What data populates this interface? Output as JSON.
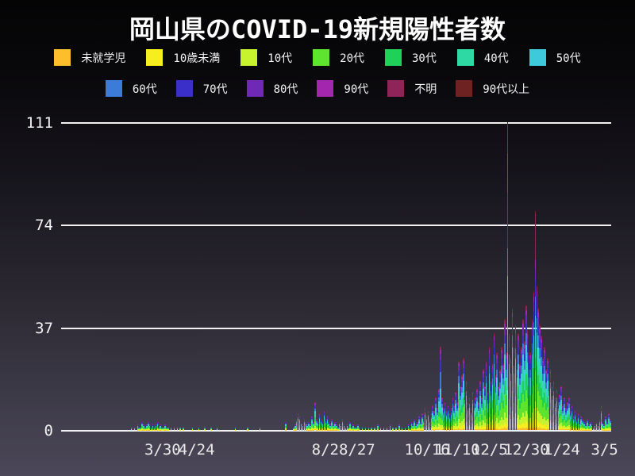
{
  "title": "岡山県のCOVID-19新規陽性者数",
  "colors": {
    "background_top": "#040405",
    "background_bottom": "#4b4758",
    "grid": "#f2f2f2",
    "text": "#ffffff"
  },
  "chart_data": {
    "type": "bar",
    "stacked": true,
    "title": "岡山県のCOVID-19新規陽性者数",
    "xlabel": "",
    "ylabel": "",
    "grid": "horizontal",
    "legend_position": "top",
    "ymax": 111,
    "yticks": [
      0,
      37,
      74,
      111
    ],
    "x_tick_labels": [
      {
        "label": "3/30",
        "pos": 0.181
      },
      {
        "label": "4/24",
        "pos": 0.243
      },
      {
        "label": "8/2",
        "pos": 0.478
      },
      {
        "label": "8/27",
        "pos": 0.536
      },
      {
        "label": "10/16",
        "pos": 0.664
      },
      {
        "label": "11/10",
        "pos": 0.719
      },
      {
        "label": "12/5",
        "pos": 0.778
      },
      {
        "label": "12/30",
        "pos": 0.845
      },
      {
        "label": "1/24",
        "pos": 0.91
      },
      {
        "label": "3/5",
        "pos": 0.988
      }
    ],
    "groups": [
      {
        "label": "未就学児",
        "color": "#fcbe2b"
      },
      {
        "label": "10歳未満",
        "color": "#f6ee1f"
      },
      {
        "label": "10代",
        "color": "#c6f32e"
      },
      {
        "label": "20代",
        "color": "#5fe42e"
      },
      {
        "label": "30代",
        "color": "#1fd158"
      },
      {
        "label": "40代",
        "color": "#2fd9a4"
      },
      {
        "label": "50代",
        "color": "#3ec9dd"
      },
      {
        "label": "60代",
        "color": "#3c7cd8"
      },
      {
        "label": "70代",
        "color": "#3a2fc9"
      },
      {
        "label": "80代",
        "color": "#7028b6"
      },
      {
        "label": "90代",
        "color": "#a227ae"
      },
      {
        "label": "不明",
        "color": "#8f2458"
      },
      {
        "label": "90代以上",
        "color": "#6e2222"
      }
    ],
    "age_weights": [
      2,
      5,
      9,
      17,
      13,
      12,
      12,
      10,
      8,
      7,
      4,
      3,
      1
    ],
    "weight_overrides": {
      "246": [
        0,
        2,
        4,
        8,
        6,
        8,
        22,
        20,
        14,
        8,
        4,
        4,
        0
      ],
      "290": [
        1,
        4,
        8,
        12,
        6,
        6,
        13,
        9,
        8,
        10,
        13,
        9,
        1
      ],
      "308": [
        1,
        4,
        8,
        14,
        6,
        5,
        14,
        9,
        7,
        6,
        4,
        21,
        1
      ]
    },
    "daily_totals": [
      0,
      0,
      0,
      0,
      0,
      0,
      0,
      0,
      0,
      0,
      0,
      0,
      0,
      0,
      0,
      0,
      0,
      0,
      0,
      0,
      0,
      0,
      0,
      0,
      0,
      0,
      0,
      0,
      0,
      0,
      0,
      0,
      0,
      0,
      0,
      0,
      0,
      0,
      0,
      0,
      0,
      0,
      0,
      0,
      1,
      0,
      1,
      0,
      2,
      1,
      1,
      3,
      2,
      1,
      2,
      3,
      2,
      1,
      2,
      1,
      2,
      3,
      1,
      2,
      1,
      1,
      2,
      1,
      1,
      0,
      1,
      0,
      1,
      0,
      1,
      0,
      1,
      0,
      1,
      0,
      0,
      0,
      0,
      0,
      1,
      0,
      0,
      0,
      1,
      0,
      0,
      0,
      1,
      0,
      0,
      0,
      1,
      0,
      0,
      0,
      1,
      0,
      0,
      0,
      0,
      0,
      0,
      0,
      0,
      0,
      0,
      0,
      1,
      0,
      0,
      0,
      0,
      0,
      0,
      0,
      1,
      0,
      0,
      0,
      0,
      0,
      0,
      0,
      1,
      0,
      0,
      0,
      0,
      0,
      0,
      0,
      0,
      0,
      0,
      0,
      0,
      0,
      0,
      0,
      0,
      3,
      0,
      0,
      0,
      0,
      1,
      2,
      4,
      6,
      5,
      3,
      2,
      4,
      3,
      2,
      3,
      2,
      5,
      3,
      10,
      4,
      3,
      6,
      4,
      3,
      7,
      4,
      5,
      3,
      2,
      4,
      2,
      3,
      2,
      1,
      3,
      2,
      4,
      2,
      1,
      2,
      1,
      3,
      1,
      2,
      1,
      1,
      2,
      1,
      0,
      1,
      0,
      1,
      0,
      1,
      0,
      1,
      0,
      1,
      0,
      2,
      0,
      1,
      0,
      1,
      0,
      1,
      0,
      2,
      0,
      1,
      0,
      1,
      0,
      2,
      0,
      1,
      0,
      1,
      0,
      2,
      1,
      3,
      2,
      4,
      2,
      3,
      5,
      3,
      6,
      4,
      8,
      5,
      7,
      4,
      6,
      9,
      7,
      12,
      8,
      15,
      30,
      12,
      8,
      10,
      7,
      9,
      6,
      8,
      12,
      9,
      14,
      10,
      25,
      16,
      20,
      26,
      14,
      18,
      10,
      12,
      8,
      14,
      10,
      12,
      15,
      10,
      18,
      12,
      22,
      16,
      25,
      14,
      30,
      18,
      24,
      35,
      20,
      28,
      16,
      22,
      30,
      24,
      40,
      28,
      111,
      35,
      26,
      44,
      30,
      38,
      28,
      35,
      24,
      30,
      40,
      32,
      45,
      36,
      28,
      28,
      40,
      50,
      79,
      52,
      44,
      38,
      34,
      26,
      30,
      22,
      26,
      18,
      22,
      16,
      18,
      12,
      15,
      10,
      13,
      16,
      9,
      12,
      8,
      10,
      12,
      7,
      9,
      5,
      7,
      4,
      6,
      3,
      5,
      4,
      3,
      2,
      4,
      2,
      3,
      2,
      1,
      2,
      3,
      2,
      4,
      9,
      3,
      2,
      5,
      3,
      6,
      4
    ]
  }
}
